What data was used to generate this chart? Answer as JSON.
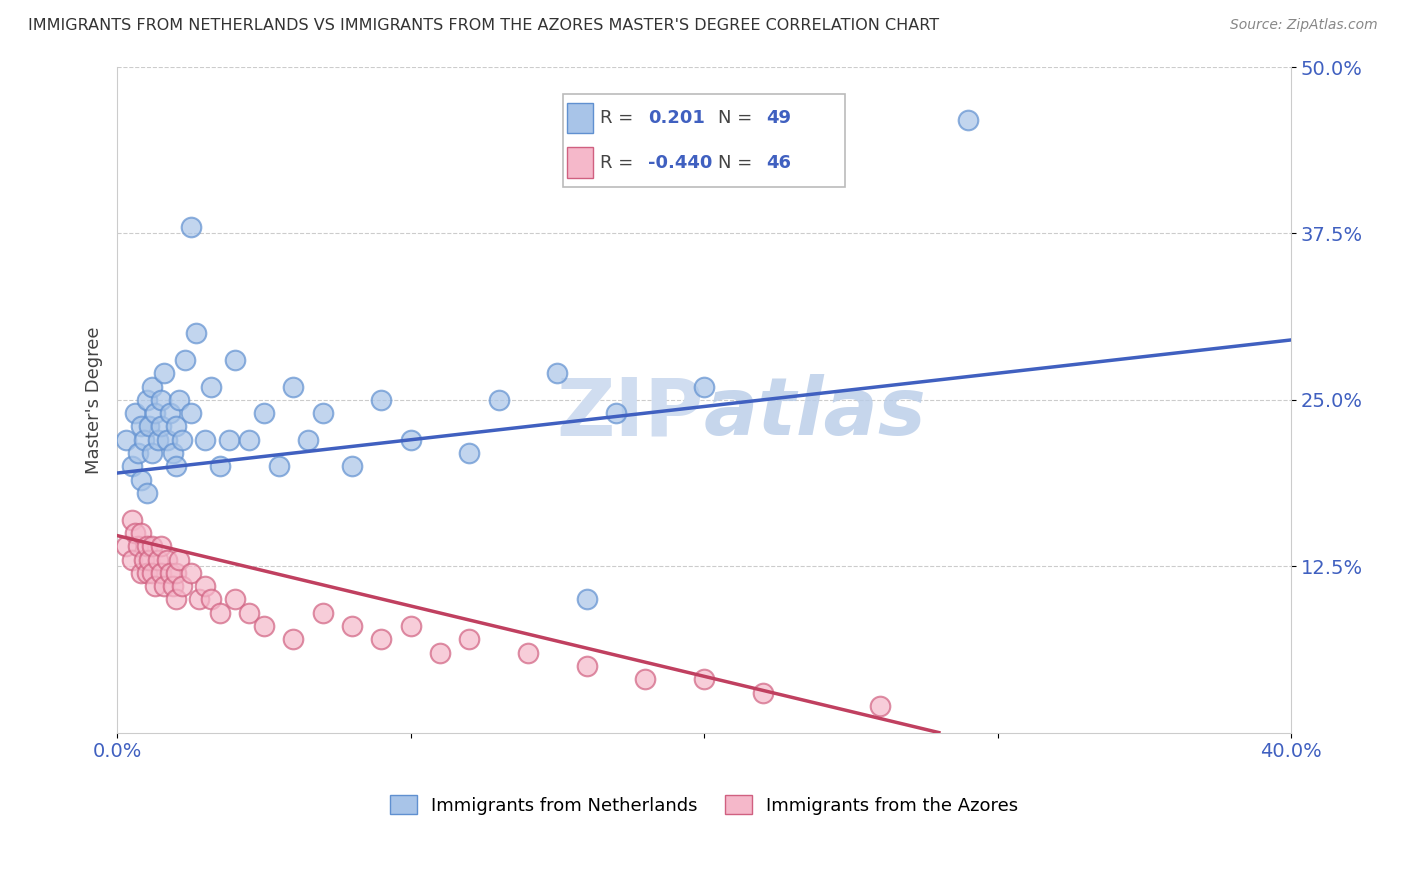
{
  "title": "IMMIGRANTS FROM NETHERLANDS VS IMMIGRANTS FROM THE AZORES MASTER'S DEGREE CORRELATION CHART",
  "source": "Source: ZipAtlas.com",
  "xlabel_blue": "Immigrants from Netherlands",
  "xlabel_pink": "Immigrants from the Azores",
  "ylabel": "Master's Degree",
  "xlim": [
    0.0,
    0.4
  ],
  "ylim": [
    0.0,
    0.5
  ],
  "yticks": [
    0.125,
    0.25,
    0.375,
    0.5
  ],
  "ytick_labels": [
    "12.5%",
    "25.0%",
    "37.5%",
    "50.0%"
  ],
  "xticks": [
    0.0,
    0.1,
    0.2,
    0.3,
    0.4
  ],
  "xtick_labels": [
    "0.0%",
    "",
    "",
    "",
    "40.0%"
  ],
  "blue_R": 0.201,
  "blue_N": 49,
  "pink_R": -0.44,
  "pink_N": 46,
  "blue_color": "#a8c4e8",
  "pink_color": "#f5b8ca",
  "blue_edge_color": "#6090d0",
  "pink_edge_color": "#d06080",
  "blue_line_color": "#4060c0",
  "pink_line_color": "#c04060",
  "watermark_color": "#d0ddf0",
  "blue_line_x": [
    0.0,
    0.4
  ],
  "blue_line_y": [
    0.195,
    0.295
  ],
  "pink_line_x": [
    0.0,
    0.28
  ],
  "pink_line_y": [
    0.148,
    0.0
  ],
  "blue_scatter_x": [
    0.003,
    0.005,
    0.006,
    0.007,
    0.008,
    0.008,
    0.009,
    0.01,
    0.01,
    0.011,
    0.012,
    0.012,
    0.013,
    0.014,
    0.015,
    0.015,
    0.016,
    0.017,
    0.018,
    0.019,
    0.02,
    0.02,
    0.021,
    0.022,
    0.023,
    0.025,
    0.027,
    0.03,
    0.032,
    0.035,
    0.038,
    0.04,
    0.045,
    0.05,
    0.055,
    0.06,
    0.065,
    0.07,
    0.08,
    0.09,
    0.1,
    0.12,
    0.13,
    0.15,
    0.17,
    0.2,
    0.025,
    0.29,
    0.16
  ],
  "blue_scatter_y": [
    0.22,
    0.2,
    0.24,
    0.21,
    0.23,
    0.19,
    0.22,
    0.25,
    0.18,
    0.23,
    0.21,
    0.26,
    0.24,
    0.22,
    0.23,
    0.25,
    0.27,
    0.22,
    0.24,
    0.21,
    0.23,
    0.2,
    0.25,
    0.22,
    0.28,
    0.24,
    0.3,
    0.22,
    0.26,
    0.2,
    0.22,
    0.28,
    0.22,
    0.24,
    0.2,
    0.26,
    0.22,
    0.24,
    0.2,
    0.25,
    0.22,
    0.21,
    0.25,
    0.27,
    0.24,
    0.26,
    0.38,
    0.46,
    0.1
  ],
  "pink_scatter_x": [
    0.003,
    0.005,
    0.005,
    0.006,
    0.007,
    0.008,
    0.008,
    0.009,
    0.01,
    0.01,
    0.011,
    0.012,
    0.012,
    0.013,
    0.014,
    0.015,
    0.015,
    0.016,
    0.017,
    0.018,
    0.019,
    0.02,
    0.02,
    0.021,
    0.022,
    0.025,
    0.028,
    0.03,
    0.032,
    0.035,
    0.04,
    0.045,
    0.05,
    0.06,
    0.07,
    0.08,
    0.09,
    0.1,
    0.11,
    0.12,
    0.14,
    0.16,
    0.18,
    0.2,
    0.22,
    0.26
  ],
  "pink_scatter_y": [
    0.14,
    0.16,
    0.13,
    0.15,
    0.14,
    0.12,
    0.15,
    0.13,
    0.14,
    0.12,
    0.13,
    0.14,
    0.12,
    0.11,
    0.13,
    0.12,
    0.14,
    0.11,
    0.13,
    0.12,
    0.11,
    0.12,
    0.1,
    0.13,
    0.11,
    0.12,
    0.1,
    0.11,
    0.1,
    0.09,
    0.1,
    0.09,
    0.08,
    0.07,
    0.09,
    0.08,
    0.07,
    0.08,
    0.06,
    0.07,
    0.06,
    0.05,
    0.04,
    0.04,
    0.03,
    0.02
  ]
}
